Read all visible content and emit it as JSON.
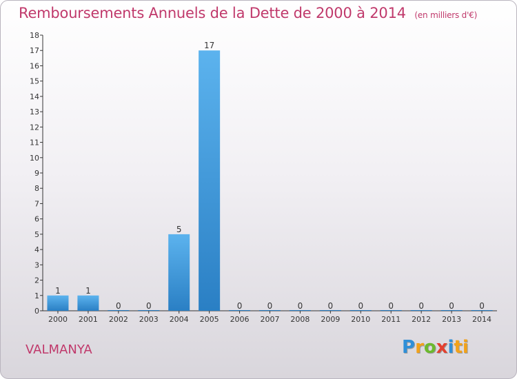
{
  "chart_data": {
    "type": "bar",
    "title": "Remboursements Annuels de la Dette de 2000 à 2014",
    "unit_label": "(en milliers d'€)",
    "categories": [
      "2000",
      "2001",
      "2002",
      "2003",
      "2004",
      "2005",
      "2006",
      "2007",
      "2008",
      "2009",
      "2010",
      "2011",
      "2012",
      "2013",
      "2014"
    ],
    "values": [
      1,
      1,
      0,
      0,
      5,
      17,
      0,
      0,
      0,
      0,
      0,
      0,
      0,
      0,
      0
    ],
    "ylim": [
      0,
      18
    ],
    "yticks": [
      0,
      1,
      2,
      3,
      4,
      5,
      6,
      7,
      8,
      9,
      10,
      11,
      12,
      13,
      14,
      15,
      16,
      17,
      18
    ],
    "grid": false,
    "bar_color": "#4da6e8"
  },
  "footer": {
    "commune": "VALMANYA",
    "logo_letters": [
      "P",
      "r",
      "o",
      "x",
      "i",
      "ti"
    ]
  }
}
